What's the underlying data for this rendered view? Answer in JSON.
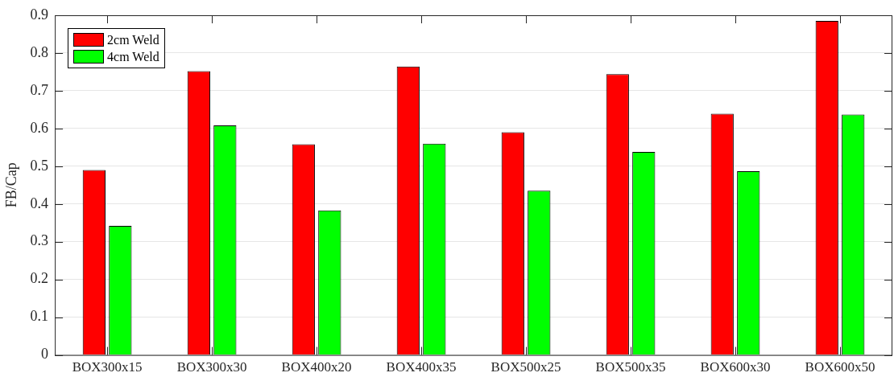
{
  "chart_data": {
    "type": "bar",
    "ylabel": "FB/Cap",
    "categories": [
      "BOX300x15",
      "BOX300x30",
      "BOX400x20",
      "BOX400x35",
      "BOX500x25",
      "BOX500x35",
      "BOX600x30",
      "BOX600x50"
    ],
    "series": [
      {
        "name": "2cm Weld",
        "color": "#ff0000",
        "values": [
          0.49,
          0.752,
          0.558,
          0.764,
          0.59,
          0.744,
          0.639,
          0.885
        ]
      },
      {
        "name": "4cm Weld",
        "color": "#00ff00",
        "values": [
          0.342,
          0.608,
          0.383,
          0.56,
          0.435,
          0.538,
          0.487,
          0.637
        ]
      }
    ],
    "ylim": [
      0,
      0.9
    ],
    "yticks": [
      0,
      0.1,
      0.2,
      0.3,
      0.4,
      0.5,
      0.6,
      0.7,
      0.8,
      0.9
    ],
    "grid": "y",
    "legend": "top left"
  }
}
